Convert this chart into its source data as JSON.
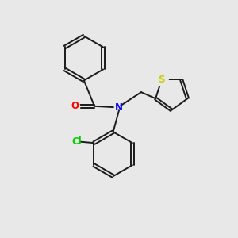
{
  "background_color": "#e8e8e8",
  "bond_color": "#1a1a1a",
  "atom_colors": {
    "O": "#ff0000",
    "N": "#0000ff",
    "Cl": "#00cc00",
    "S": "#cccc00"
  },
  "figsize": [
    3.0,
    3.0
  ],
  "dpi": 100
}
